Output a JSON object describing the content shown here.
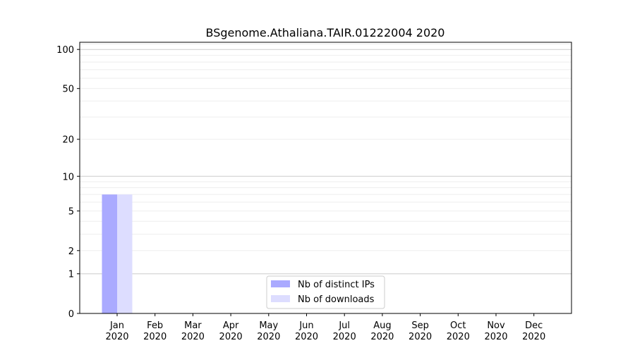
{
  "chart_data": {
    "type": "bar",
    "title": "BSgenome.Athaliana.TAIR.01222004 2020",
    "xlabel": "",
    "ylabel": "",
    "categories": [
      "Jan\n2020",
      "Feb\n2020",
      "Mar\n2020",
      "Apr\n2020",
      "May\n2020",
      "Jun\n2020",
      "Jul\n2020",
      "Aug\n2020",
      "Sep\n2020",
      "Oct\n2020",
      "Nov\n2020",
      "Dec\n2020"
    ],
    "series": [
      {
        "name": "Nb of distinct IPs",
        "color": "#aaaaff",
        "values": [
          7,
          0,
          0,
          0,
          0,
          0,
          0,
          0,
          0,
          0,
          0,
          0
        ]
      },
      {
        "name": "Nb of downloads",
        "color": "#ddddff",
        "values": [
          7,
          0,
          0,
          0,
          0,
          0,
          0,
          0,
          0,
          0,
          0,
          0
        ]
      }
    ],
    "yscale": "log(1+y)",
    "ylim": [
      0,
      120
    ],
    "yticks": [
      0,
      1,
      2,
      5,
      10,
      20,
      50,
      100
    ],
    "grid": true,
    "legend": "bottom-center"
  }
}
